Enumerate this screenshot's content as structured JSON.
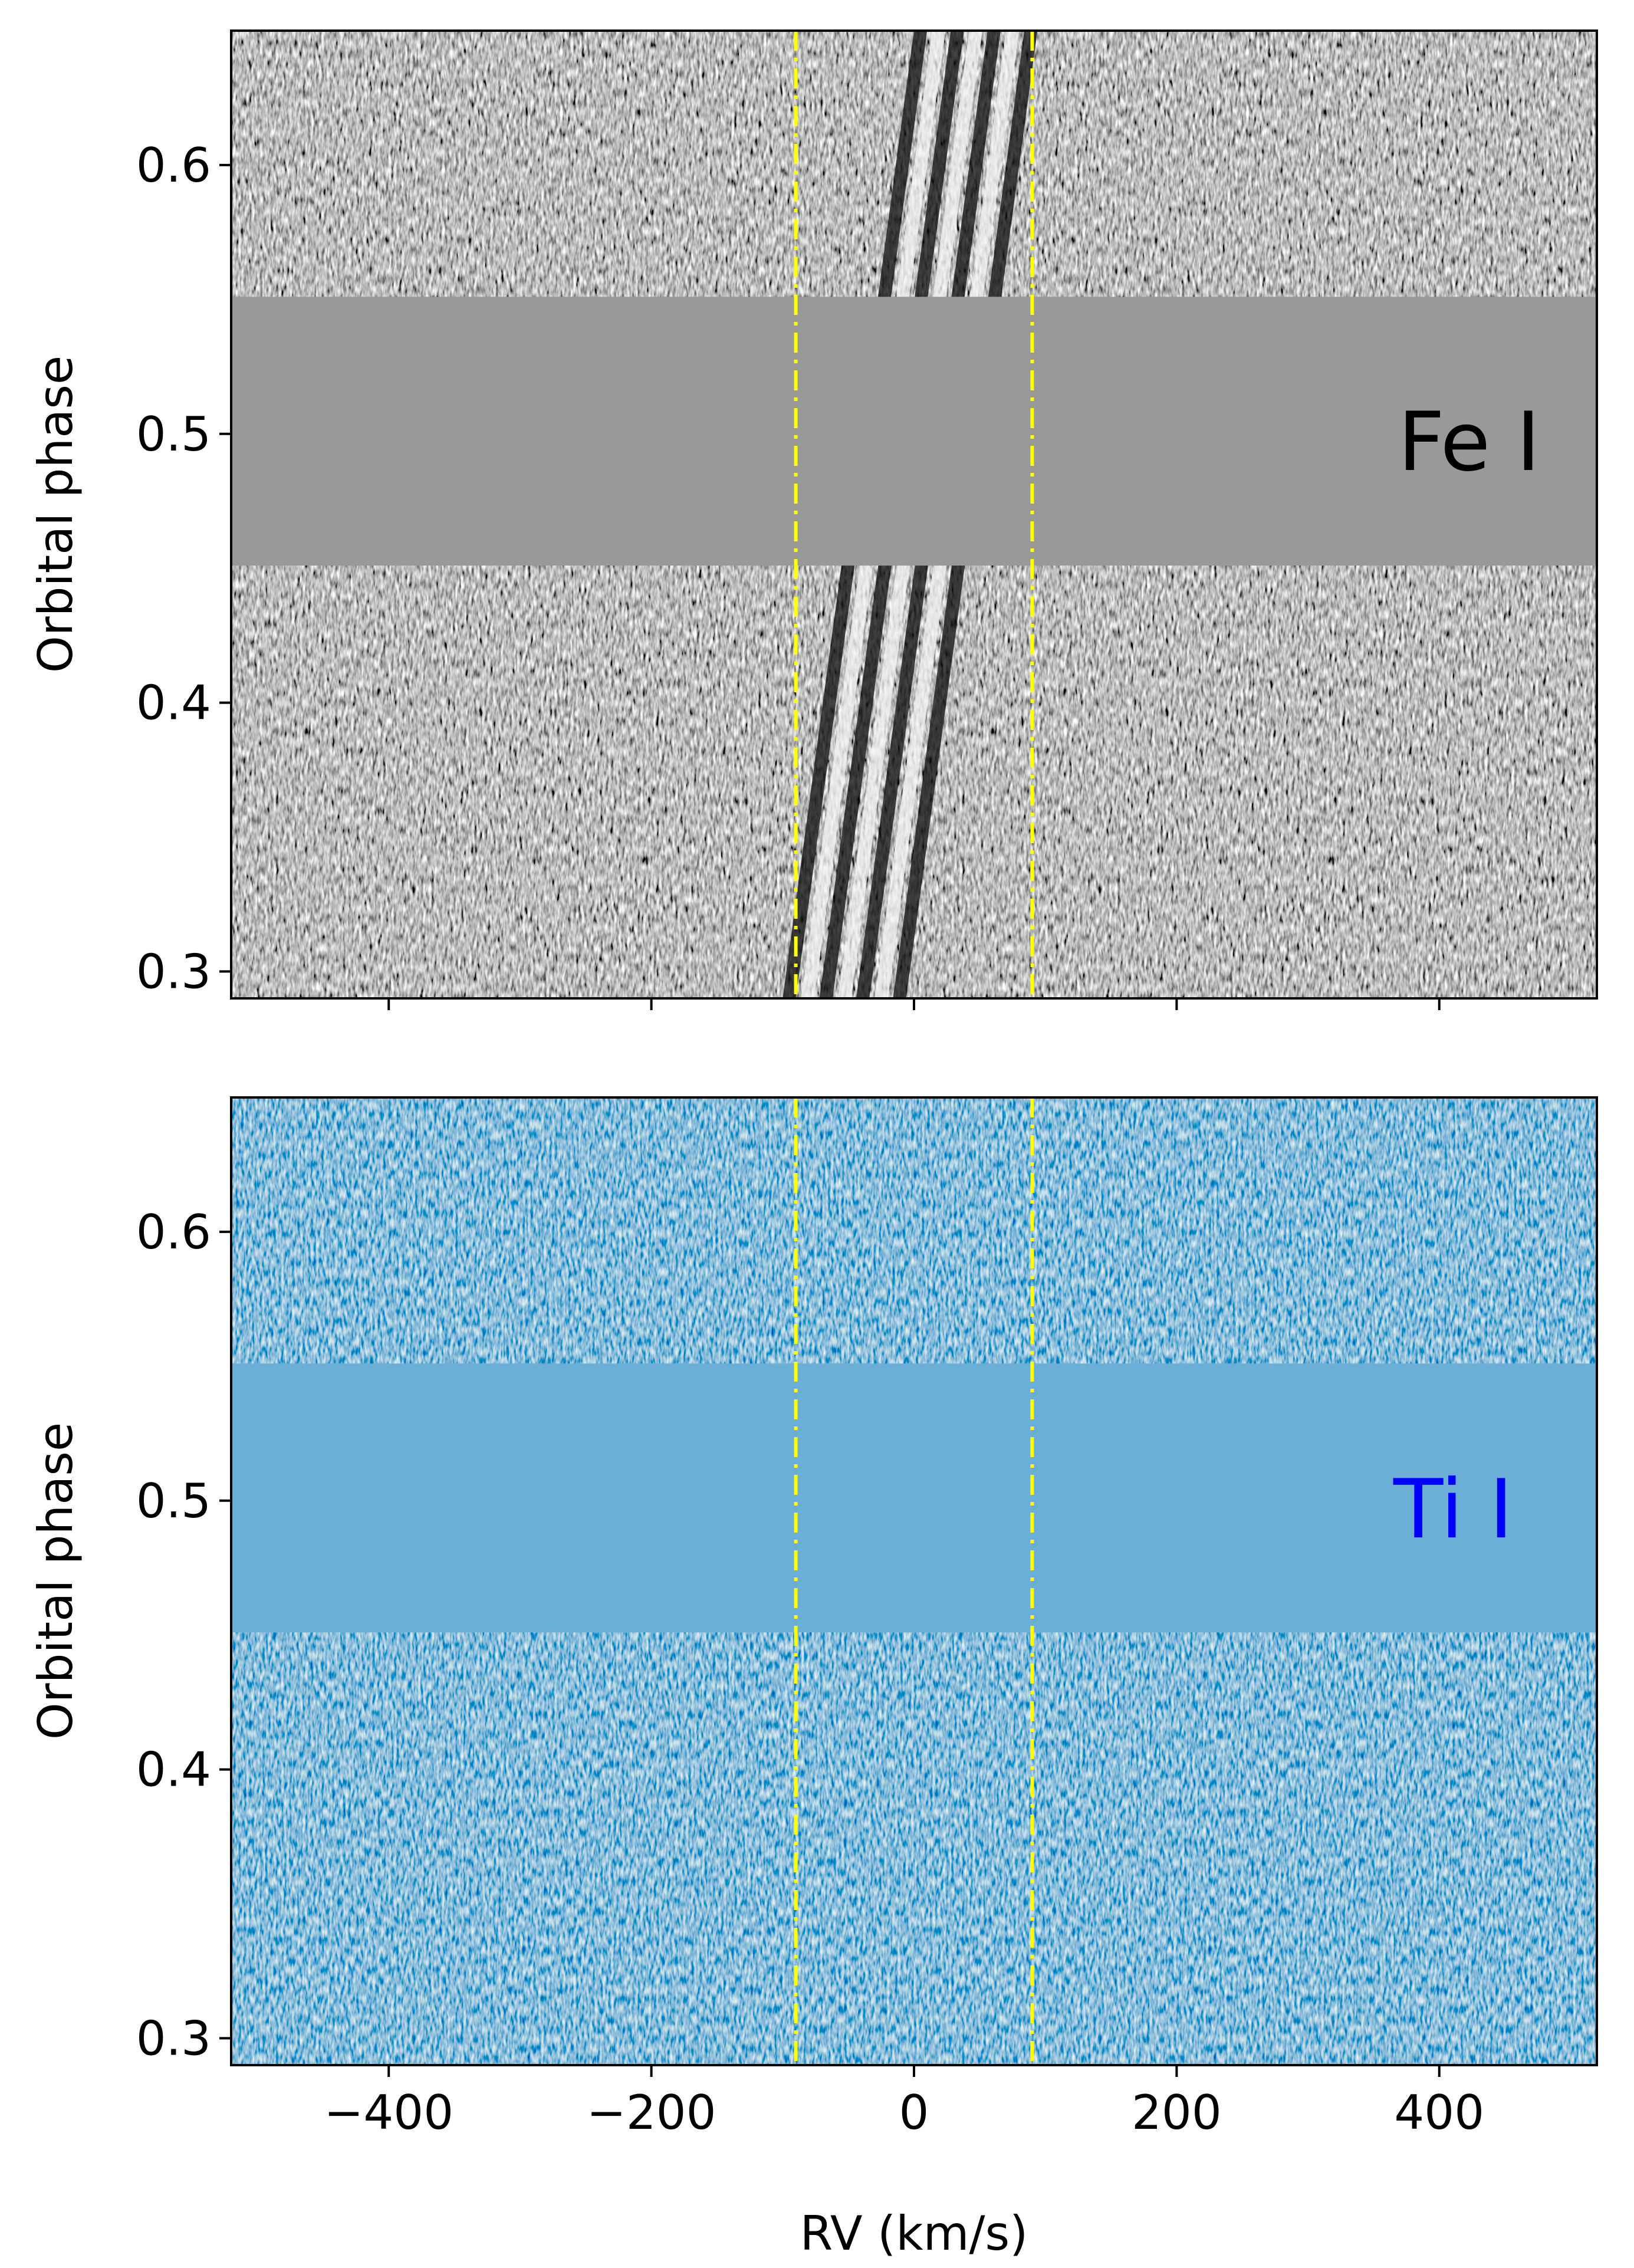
{
  "chart_data": [
    {
      "type": "heatmap",
      "panel_label": "Fe I",
      "panel_label_color": "#000000",
      "colormap": "grayscale",
      "xlim": [
        -520,
        520
      ],
      "ylim": [
        0.29,
        0.65
      ],
      "ylabel": "Orbital phase",
      "xlabel": "",
      "yticks": [
        0.3,
        0.4,
        0.5,
        0.6
      ],
      "ytick_labels": [
        "0.3",
        "0.4",
        "0.5",
        "0.6"
      ],
      "xticks": [
        -400,
        -200,
        0,
        200,
        400
      ],
      "xtick_labels": [],
      "masked_phase_range": [
        0.451,
        0.551
      ],
      "masked_color": "#999999",
      "vertical_lines": [
        -90,
        90
      ],
      "vertical_line_color": "#ffff00",
      "vertical_line_style": "dash-dot",
      "signal_trail": {
        "rv_at_phase_0.3": -55,
        "rv_at_phase_0.65": 45
      }
    },
    {
      "type": "heatmap",
      "panel_label": "Ti I",
      "panel_label_color": "#0000ff",
      "colormap": "blues",
      "xlim": [
        -520,
        520
      ],
      "ylim": [
        0.29,
        0.65
      ],
      "ylabel": "Orbital phase",
      "xlabel": "RV (km/s)",
      "yticks": [
        0.3,
        0.4,
        0.5,
        0.6
      ],
      "ytick_labels": [
        "0.3",
        "0.4",
        "0.5",
        "0.6"
      ],
      "xticks": [
        -400,
        -200,
        0,
        200,
        400
      ],
      "xtick_labels": [
        "−400",
        "−200",
        "0",
        "200",
        "400"
      ],
      "masked_phase_range": [
        0.451,
        0.551
      ],
      "masked_color": "#6baed6",
      "vertical_lines": [
        -90,
        90
      ],
      "vertical_line_color": "#ffff00",
      "vertical_line_style": "dash-dot"
    }
  ]
}
